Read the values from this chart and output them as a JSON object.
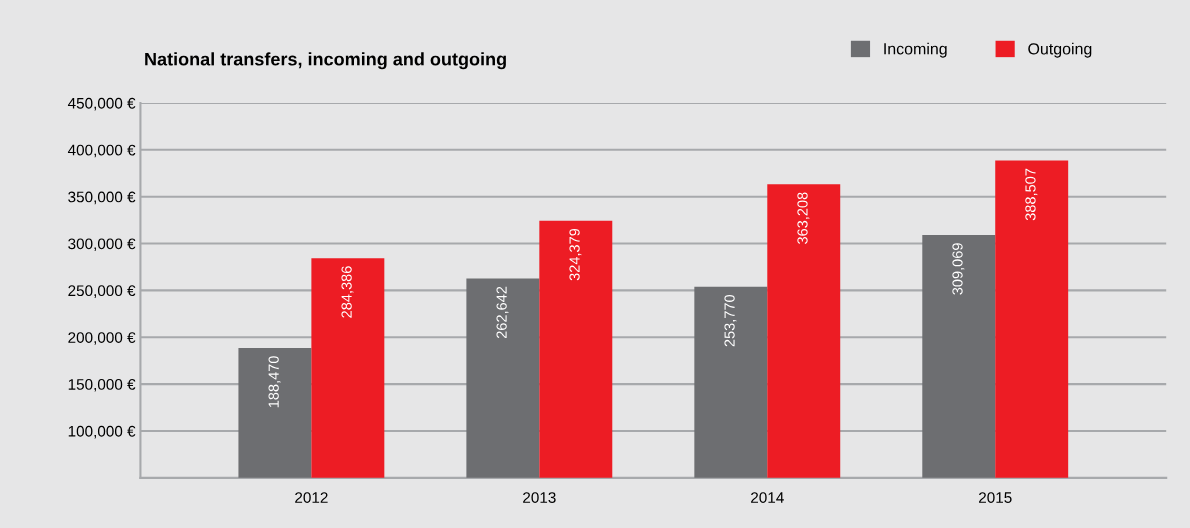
{
  "chart_data": {
    "type": "bar",
    "title": "National transfers, incoming and outgoing",
    "categories": [
      "2012",
      "2013",
      "2014",
      "2015"
    ],
    "series": [
      {
        "name": "Incoming",
        "color": "#6d6e71",
        "values": [
          188470,
          262642,
          253770,
          309069
        ],
        "value_labels": [
          "188,470",
          "262,642",
          "253,770",
          "309,069"
        ]
      },
      {
        "name": "Outgoing",
        "color": "#ed1c24",
        "values": [
          284386,
          324379,
          363208,
          388507
        ],
        "value_labels": [
          "284,386",
          "324,379",
          "363,208",
          "388,507"
        ]
      }
    ],
    "ylim": [
      50000,
      450000
    ],
    "yticks": [
      {
        "value": 100000,
        "label": "100,000 €"
      },
      {
        "value": 150000,
        "label": "150,000 €"
      },
      {
        "value": 200000,
        "label": "200,000 €"
      },
      {
        "value": 250000,
        "label": "250,000 €"
      },
      {
        "value": 300000,
        "label": "300,000 €"
      },
      {
        "value": 350000,
        "label": "350,000 €"
      },
      {
        "value": 400000,
        "label": "400,000 €"
      },
      {
        "value": 450000,
        "label": "450,000 €"
      }
    ],
    "grid": "y",
    "legend": "top right"
  }
}
